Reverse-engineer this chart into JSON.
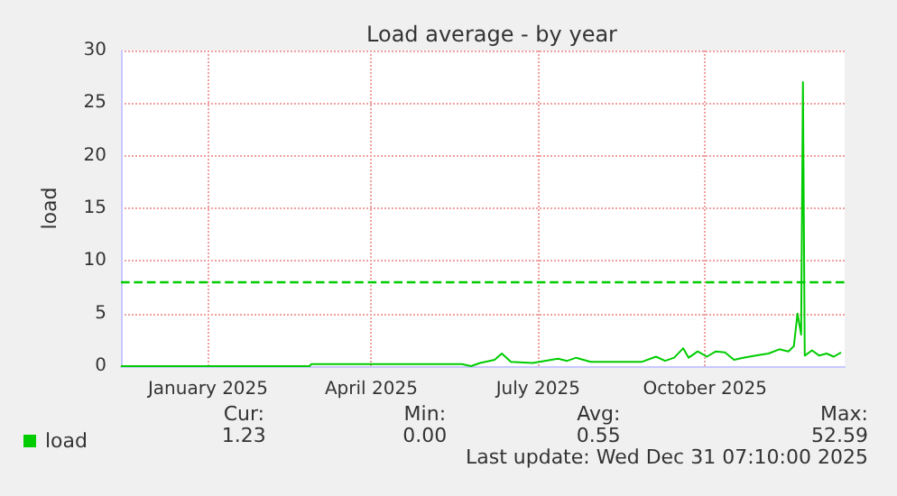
{
  "chart_data": {
    "type": "line",
    "title": "Load average - by year",
    "ylabel": "load",
    "x": [
      "2024-11-28",
      "2025-03-12",
      "2025-03-13",
      "2025-04-15",
      "2025-06-04",
      "2025-06-09",
      "2025-06-14",
      "2025-06-22",
      "2025-06-26",
      "2025-07-01",
      "2025-07-13",
      "2025-07-27",
      "2025-08-01",
      "2025-08-06",
      "2025-08-14",
      "2025-09-11",
      "2025-09-19",
      "2025-09-24",
      "2025-09-29",
      "2025-10-04",
      "2025-10-07",
      "2025-10-12",
      "2025-10-17",
      "2025-10-22",
      "2025-10-27",
      "2025-11-01",
      "2025-11-06",
      "2025-11-13",
      "2025-11-20",
      "2025-11-26",
      "2025-12-01",
      "2025-12-04",
      "2025-12-06",
      "2025-12-08",
      "2025-12-09",
      "2025-12-10",
      "2025-12-14",
      "2025-12-18",
      "2025-12-22",
      "2025-12-26",
      "2025-12-30"
    ],
    "series": [
      {
        "name": "load",
        "color": "#00cc00",
        "values": [
          0,
          0,
          0.2,
          0.2,
          0.2,
          0,
          0.3,
          0.6,
          1.2,
          0.4,
          0.3,
          0.7,
          0.5,
          0.8,
          0.4,
          0.4,
          0.9,
          0.5,
          0.8,
          1.7,
          0.8,
          1.4,
          0.9,
          1.4,
          1.3,
          0.6,
          0.8,
          1.0,
          1.2,
          1.6,
          1.4,
          1.9,
          5.0,
          3.0,
          27,
          1.0,
          1.5,
          1.0,
          1.2,
          0.9,
          1.3
        ]
      }
    ],
    "xlim": [
      "2024-11-28",
      "2026-01-01"
    ],
    "xticks": [
      {
        "value": "2025-01-15",
        "label": "January 2025"
      },
      {
        "value": "2025-04-15",
        "label": "April 2025"
      },
      {
        "value": "2025-07-16",
        "label": "July 2025"
      },
      {
        "value": "2025-10-16",
        "label": "October 2025"
      }
    ],
    "ylim": [
      0,
      30
    ],
    "yticks": [
      0,
      5,
      10,
      15,
      20,
      25,
      30
    ],
    "ref_lines": [
      {
        "axis": "y",
        "value": 8,
        "color": "#00cc00",
        "line_style": "dashed"
      }
    ],
    "grid": true,
    "legend": "bottom left",
    "line_style": "solid",
    "annotations": [
      "Cur:",
      "Min:",
      "Avg:",
      "Max:",
      "1.23",
      "0.00",
      "0.55",
      "52.59",
      "Last update: Wed Dec 31 07:10:00 2025"
    ]
  }
}
